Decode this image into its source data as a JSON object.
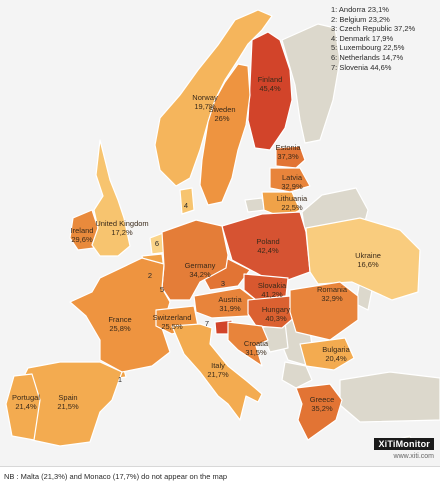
{
  "map": {
    "countries": [
      {
        "id": "andorra",
        "key": "1",
        "name": "Andorra",
        "value": "23,1%",
        "color": "#f0a248"
      },
      {
        "id": "belgium",
        "key": "2",
        "name": "Belgium",
        "value": "23,2%",
        "color": "#f0a248"
      },
      {
        "id": "czech",
        "key": "3",
        "name": "Czech Republic",
        "value": "37,2%",
        "color": "#e27434"
      },
      {
        "id": "denmark",
        "key": "4",
        "name": "Denmark",
        "value": "17,9%",
        "color": "#f7c46f"
      },
      {
        "id": "luxembourg",
        "key": "5",
        "name": "Luxembourg",
        "value": "22,5%",
        "color": "#f0a248"
      },
      {
        "id": "netherlands",
        "key": "6",
        "name": "Netherlands",
        "value": "14,7%",
        "color": "#fad489"
      },
      {
        "id": "slovenia",
        "key": "7",
        "name": "Slovenia",
        "value": "44,6%",
        "color": "#d2442a"
      },
      {
        "id": "finland",
        "name": "Finland",
        "value": "45,4%",
        "color": "#d2442a"
      },
      {
        "id": "norway",
        "name": "Norway",
        "value": "19,7%",
        "color": "#f5b55c"
      },
      {
        "id": "sweden",
        "name": "Sweden",
        "value": "26%",
        "color": "#ee9440"
      },
      {
        "id": "estonia",
        "name": "Estonia",
        "value": "37,3%",
        "color": "#e27434"
      },
      {
        "id": "latvia",
        "name": "Latvia",
        "value": "32,9%",
        "color": "#e8843b"
      },
      {
        "id": "lithuania",
        "name": "Lithuania",
        "value": "22,5%",
        "color": "#f0a248"
      },
      {
        "id": "ireland",
        "name": "Ireland",
        "value": "29,6%",
        "color": "#e98a3c"
      },
      {
        "id": "uk",
        "name": "United Kingdom",
        "value": "17,2%",
        "color": "#f7c46f"
      },
      {
        "id": "poland",
        "name": "Poland",
        "value": "42,4%",
        "color": "#d65332"
      },
      {
        "id": "germany",
        "name": "Germany",
        "value": "34,2%",
        "color": "#e47d38"
      },
      {
        "id": "slovakia",
        "name": "Slovakia",
        "value": "41,2%",
        "color": "#d8582f"
      },
      {
        "id": "ukraine",
        "name": "Ukraine",
        "value": "16,6%",
        "color": "#f9cc7e"
      },
      {
        "id": "austria",
        "name": "Austria",
        "value": "31,9%",
        "color": "#e8843b"
      },
      {
        "id": "hungary",
        "name": "Hungary",
        "value": "40,3%",
        "color": "#db6131"
      },
      {
        "id": "romania",
        "name": "Romania",
        "value": "32,9%",
        "color": "#e8843b"
      },
      {
        "id": "france",
        "name": "France",
        "value": "25,8%",
        "color": "#ee9440"
      },
      {
        "id": "switzerland",
        "name": "Switzerland",
        "value": "25,5%",
        "color": "#ee9440"
      },
      {
        "id": "croatia",
        "name": "Croatia",
        "value": "31,5%",
        "color": "#e8843b"
      },
      {
        "id": "bulgaria",
        "name": "Bulgaria",
        "value": "20,4%",
        "color": "#f3ab50"
      },
      {
        "id": "italy",
        "name": "Italy",
        "value": "21,7%",
        "color": "#f3ab50"
      },
      {
        "id": "spain",
        "name": "Spain",
        "value": "21,5%",
        "color": "#f3ab50"
      },
      {
        "id": "portugal",
        "name": "Portugal",
        "value": "21,4%",
        "color": "#f3ab50"
      },
      {
        "id": "greece",
        "name": "Greece",
        "value": "35,2%",
        "color": "#e27434"
      }
    ],
    "no_data_color": "#dcd8cc",
    "sea_color": "#f4f4f4",
    "legend_items": [
      "1: Andorra 23,1%",
      "2: Belgium 23,2%",
      "3: Czech Republic 37,2%",
      "4: Denmark 17,9%",
      "5: Luxembourg 22,5%",
      "6: Netherlands 14,7%",
      "7: Slovenia 44,6%"
    ]
  },
  "branding": {
    "title": "XiTiMonitor",
    "url": "www.xiti.com"
  },
  "footnote": "NB : Malta (21,3%) and Monaco (17,7%) do not appear on the map"
}
